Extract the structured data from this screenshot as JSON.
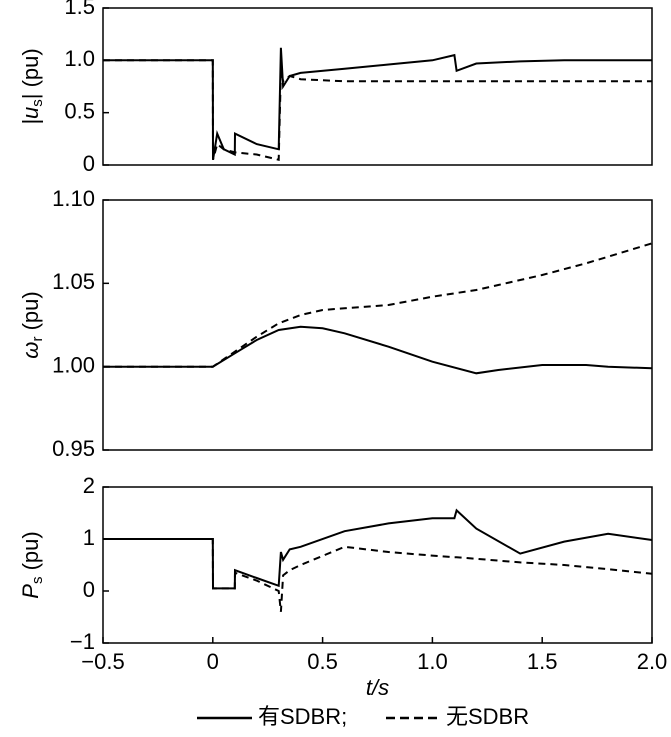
{
  "chart_data": [
    {
      "type": "line",
      "ylabel": [
        "|u",
        "s",
        "| (pu)"
      ],
      "x": [
        -0.5,
        0,
        0.001,
        0.02,
        0.05,
        0.1,
        0.101,
        0.2,
        0.3,
        0.31,
        0.32,
        0.35,
        0.4,
        0.6,
        0.8,
        1.0,
        1.1,
        1.11,
        1.2,
        1.4,
        1.6,
        1.8,
        2.0
      ],
      "series": [
        {
          "name": "有SDBR;",
          "color": "#000000",
          "style": "solid",
          "values": [
            1,
            1,
            0.05,
            0.3,
            0.15,
            0.1,
            0.3,
            0.2,
            0.15,
            1.12,
            0.75,
            0.85,
            0.88,
            0.92,
            0.96,
            1.0,
            1.05,
            0.9,
            0.97,
            0.99,
            1.0,
            1.0,
            1.0
          ]
        },
        {
          "name": "无SDBR",
          "color": "#000000",
          "style": "dashed",
          "values": [
            1,
            1,
            0.05,
            0.2,
            0.15,
            0.12,
            0.12,
            0.1,
            0.05,
            0.9,
            0.8,
            0.85,
            0.82,
            0.8,
            0.8,
            0.8,
            0.8,
            0.8,
            0.8,
            0.8,
            0.8,
            0.8,
            0.8
          ]
        }
      ],
      "xlim": [
        -0.5,
        2.0
      ],
      "ylim": [
        0,
        1.5
      ],
      "yticks": [
        0,
        {
          "value": 0.5,
          "label": "0.5"
        },
        {
          "value": 1.0,
          "label": "1.0"
        },
        {
          "value": 1.5,
          "label": "1.5"
        }
      ]
    },
    {
      "type": "line",
      "ylabel": [
        "ω",
        "r",
        " (pu)"
      ],
      "x": [
        -0.5,
        0,
        0.1,
        0.2,
        0.3,
        0.4,
        0.5,
        0.6,
        0.8,
        1.0,
        1.2,
        1.3,
        1.5,
        1.7,
        1.8,
        2.0
      ],
      "series": [
        {
          "name": "有SDBR;",
          "color": "#000000",
          "style": "solid",
          "values": [
            1,
            1,
            1.008,
            1.016,
            1.022,
            1.024,
            1.023,
            1.02,
            1.012,
            1.003,
            0.996,
            0.998,
            1.001,
            1.001,
            1.0,
            0.999
          ]
        },
        {
          "name": "无SDBR",
          "color": "#000000",
          "style": "dashed",
          "values": [
            1,
            1,
            1.009,
            1.018,
            1.026,
            1.031,
            1.034,
            1.035,
            1.037,
            1.042,
            1.046,
            1.049,
            1.055,
            1.062,
            1.066,
            1.074
          ]
        }
      ],
      "xlim": [
        -0.5,
        2.0
      ],
      "ylim": [
        0.95,
        1.1
      ],
      "yticks": [
        {
          "value": 0.95,
          "label": "0.95"
        },
        {
          "value": 1.0,
          "label": "1.00"
        },
        {
          "value": 1.05,
          "label": "1.05"
        },
        {
          "value": 1.1,
          "label": "1.10"
        }
      ]
    },
    {
      "type": "line",
      "ylabel": [
        "P",
        "s",
        " (pu)"
      ],
      "xlabel": "t/s",
      "x": [
        -0.5,
        0,
        0.001,
        0.02,
        0.05,
        0.1,
        0.101,
        0.2,
        0.3,
        0.31,
        0.32,
        0.35,
        0.4,
        0.6,
        0.8,
        1.0,
        1.1,
        1.11,
        1.2,
        1.4,
        1.6,
        1.8,
        2.0
      ],
      "series": [
        {
          "name": "有SDBR;",
          "color": "#000000",
          "style": "solid",
          "values": [
            1,
            1,
            0.05,
            0.05,
            0.05,
            0.05,
            0.4,
            0.25,
            0.1,
            0.75,
            0.6,
            0.8,
            0.85,
            1.15,
            1.3,
            1.4,
            1.4,
            1.55,
            1.2,
            0.72,
            0.95,
            1.1,
            0.98
          ]
        },
        {
          "name": "无SDBR",
          "color": "#000000",
          "style": "dashed",
          "values": [
            1,
            1,
            0.05,
            0.05,
            0.05,
            0.05,
            0.35,
            0.2,
            0.0,
            -0.4,
            0.3,
            0.4,
            0.5,
            0.85,
            0.75,
            0.68,
            0.65,
            0.65,
            0.62,
            0.55,
            0.5,
            0.42,
            0.33
          ]
        }
      ],
      "xlim": [
        -0.5,
        2.0
      ],
      "ylim": [
        -1,
        2
      ],
      "xticks": [
        {
          "value": -0.5,
          "label": "−0.5"
        },
        0,
        {
          "value": 0.5,
          "label": "0.5"
        },
        {
          "value": 1.0,
          "label": "1.0"
        },
        {
          "value": 1.5,
          "label": "1.5"
        },
        {
          "value": 2.0,
          "label": "2.0"
        }
      ],
      "yticks": [
        {
          "value": -1,
          "label": "−1"
        },
        0,
        1,
        2
      ]
    }
  ]
}
